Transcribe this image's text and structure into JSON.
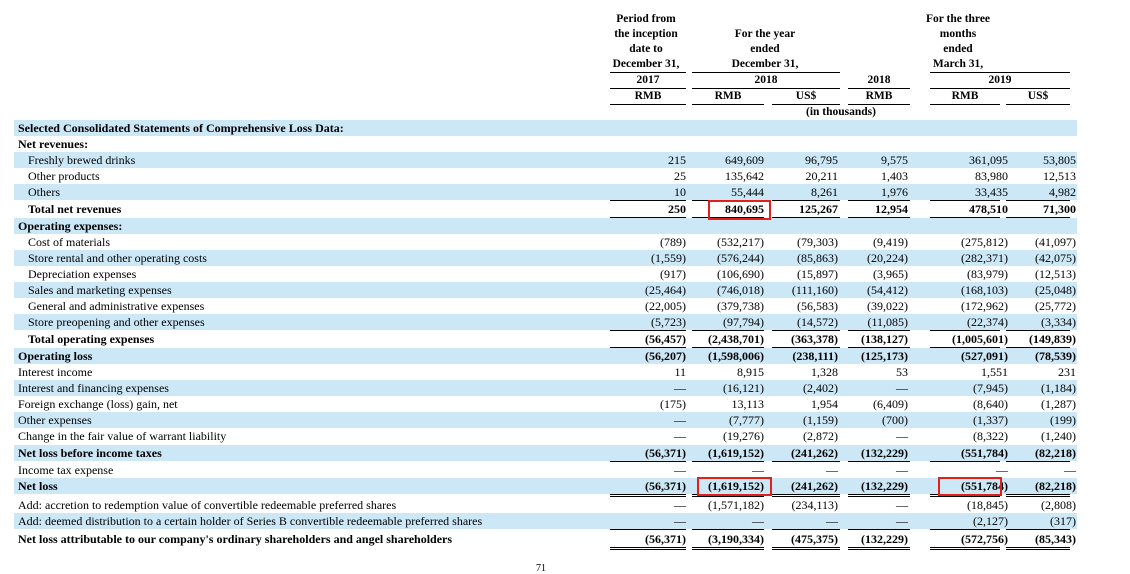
{
  "header": {
    "col_period": [
      "Period from",
      "the inception",
      "date to",
      "December 31,"
    ],
    "col_year": [
      "For the year",
      "ended",
      "December 31,"
    ],
    "col_three": [
      "For the three",
      "months",
      "ended",
      "March 31,"
    ],
    "year_2017": "2017",
    "year_2018": "2018",
    "year_2018b": "2018",
    "year_2019": "2019",
    "cur": [
      "RMB",
      "RMB",
      "US$",
      "RMB",
      "RMB",
      "US$"
    ],
    "in_thousands": "(in thousands)"
  },
  "rows": [
    {
      "label": "Selected Consolidated Statements of Comprehensive Loss Data:",
      "bold": true,
      "indent": 0,
      "values": [
        "",
        "",
        "",
        "",
        "",
        ""
      ]
    },
    {
      "label": "Net revenues:",
      "bold": true,
      "indent": 0,
      "values": [
        "",
        "",
        "",
        "",
        "",
        ""
      ]
    },
    {
      "label": "Freshly brewed drinks",
      "bold": false,
      "indent": 1,
      "values": [
        "215",
        "649,609",
        "96,795",
        "9,575",
        "361,095",
        "53,805"
      ]
    },
    {
      "label": "Other products",
      "bold": false,
      "indent": 1,
      "values": [
        "25",
        "135,642",
        "20,211",
        "1,403",
        "83,980",
        "12,513"
      ]
    },
    {
      "label": "Others",
      "bold": false,
      "indent": 1,
      "values": [
        "10",
        "55,444",
        "8,261",
        "1,976",
        "33,435",
        "4,982"
      ]
    },
    {
      "label": "Total net revenues",
      "bold": true,
      "indent": 1,
      "values": [
        "250",
        "840,695",
        "125,267",
        "12,954",
        "478,510",
        "71,300"
      ]
    },
    {
      "label": "Operating expenses:",
      "bold": true,
      "indent": 0,
      "values": [
        "",
        "",
        "",
        "",
        "",
        ""
      ]
    },
    {
      "label": "Cost of materials",
      "bold": false,
      "indent": 1,
      "values": [
        "(789)",
        "(532,217)",
        "(79,303)",
        "(9,419)",
        "(275,812)",
        "(41,097)"
      ]
    },
    {
      "label": "Store rental and other operating costs",
      "bold": false,
      "indent": 1,
      "values": [
        "(1,559)",
        "(576,244)",
        "(85,863)",
        "(20,224)",
        "(282,371)",
        "(42,075)"
      ]
    },
    {
      "label": "Depreciation expenses",
      "bold": false,
      "indent": 1,
      "values": [
        "(917)",
        "(106,690)",
        "(15,897)",
        "(3,965)",
        "(83,979)",
        "(12,513)"
      ]
    },
    {
      "label": "Sales and marketing expenses",
      "bold": false,
      "indent": 1,
      "values": [
        "(25,464)",
        "(746,018)",
        "(111,160)",
        "(54,412)",
        "(168,103)",
        "(25,048)"
      ]
    },
    {
      "label": "General and administrative expenses",
      "bold": false,
      "indent": 1,
      "values": [
        "(22,005)",
        "(379,738)",
        "(56,583)",
        "(39,022)",
        "(172,962)",
        "(25,772)"
      ]
    },
    {
      "label": "Store preopening and other expenses",
      "bold": false,
      "indent": 1,
      "values": [
        "(5,723)",
        "(97,794)",
        "(14,572)",
        "(11,085)",
        "(22,374)",
        "(3,334)"
      ]
    },
    {
      "label": "Total operating expenses",
      "bold": true,
      "indent": 1,
      "values": [
        "(56,457)",
        "(2,438,701)",
        "(363,378)",
        "(138,127)",
        "(1,005,601)",
        "(149,839)"
      ]
    },
    {
      "label": "Operating loss",
      "bold": true,
      "indent": 0,
      "values": [
        "(56,207)",
        "(1,598,006)",
        "(238,111)",
        "(125,173)",
        "(527,091)",
        "(78,539)"
      ]
    },
    {
      "label": "Interest income",
      "bold": false,
      "indent": 0,
      "values": [
        "11",
        "8,915",
        "1,328",
        "53",
        "1,551",
        "231"
      ]
    },
    {
      "label": "Interest and financing expenses",
      "bold": false,
      "indent": 0,
      "values": [
        "—",
        "(16,121)",
        "(2,402)",
        "—",
        "(7,945)",
        "(1,184)"
      ]
    },
    {
      "label": "Foreign exchange (loss) gain, net",
      "bold": false,
      "indent": 0,
      "values": [
        "(175)",
        "13,113",
        "1,954",
        "(6,409)",
        "(8,640)",
        "(1,287)"
      ]
    },
    {
      "label": "Other expenses",
      "bold": false,
      "indent": 0,
      "values": [
        "—",
        "(7,777)",
        "(1,159)",
        "(700)",
        "(1,337)",
        "(199)"
      ]
    },
    {
      "label": "Change in the fair value of warrant liability",
      "bold": false,
      "indent": 0,
      "values": [
        "—",
        "(19,276)",
        "(2,872)",
        "—",
        "(8,322)",
        "(1,240)"
      ]
    },
    {
      "label": "Net loss before income taxes",
      "bold": true,
      "indent": 0,
      "values": [
        "(56,371)",
        "(1,619,152)",
        "(241,262)",
        "(132,229)",
        "(551,784)",
        "(82,218)"
      ]
    },
    {
      "label": "Income tax expense",
      "bold": false,
      "indent": 0,
      "values": [
        "—",
        "—",
        "—",
        "—",
        "—",
        "—"
      ]
    },
    {
      "label": "Net loss",
      "bold": true,
      "indent": 0,
      "values": [
        "(56,371)",
        "(1,619,152)",
        "(241,262)",
        "(132,229)",
        "(551,784)",
        "(82,218)"
      ]
    },
    {
      "label": "Add: accretion to redemption value of convertible redeemable preferred shares",
      "bold": false,
      "indent": 0,
      "values": [
        "—",
        "(1,571,182)",
        "(234,113)",
        "—",
        "(18,845)",
        "(2,808)"
      ]
    },
    {
      "label": "Add: deemed distribution to a certain holder of Series B convertible redeemable preferred shares",
      "bold": false,
      "indent": 0,
      "values": [
        "—",
        "—",
        "—",
        "—",
        "(2,127)",
        "(317)"
      ]
    },
    {
      "label": "Net loss attributable to our company's ordinary shareholders and angel shareholders",
      "bold": true,
      "indent": 0,
      "values": [
        "(56,371)",
        "(3,190,334)",
        "(475,375)",
        "(132,229)",
        "(572,756)",
        "(85,343)"
      ]
    }
  ],
  "page_number": "71"
}
